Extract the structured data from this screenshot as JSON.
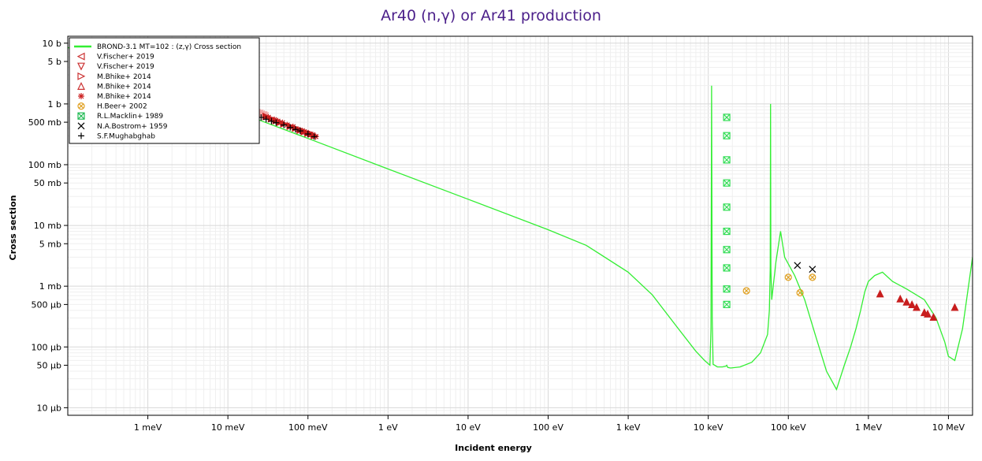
{
  "chart_data": {
    "type": "line",
    "title": "Ar40 (n,γ) or Ar41 production",
    "xlabel": "Incident energy",
    "ylabel": "Cross section",
    "x_scale": "log",
    "y_scale": "log",
    "x_unit": "eV",
    "y_unit": "b",
    "xlim": [
      0.0001,
      20000000
    ],
    "ylim": [
      7.5e-06,
      13
    ],
    "grid": true,
    "legend_position": "top-left",
    "x_ticks": [
      {
        "value": 0.001,
        "label": "1 meV"
      },
      {
        "value": 0.01,
        "label": "10 meV"
      },
      {
        "value": 0.1,
        "label": "100 meV"
      },
      {
        "value": 1,
        "label": "1 eV"
      },
      {
        "value": 10,
        "label": "10 eV"
      },
      {
        "value": 100,
        "label": "100 eV"
      },
      {
        "value": 1000,
        "label": "1 keV"
      },
      {
        "value": 10000,
        "label": "10 keV"
      },
      {
        "value": 100000,
        "label": "100 keV"
      },
      {
        "value": 1000000,
        "label": "1 MeV"
      },
      {
        "value": 10000000,
        "label": "10 MeV"
      }
    ],
    "y_ticks": [
      {
        "value": 10,
        "label": "10 b"
      },
      {
        "value": 5,
        "label": "5 b"
      },
      {
        "value": 1,
        "label": "1 b"
      },
      {
        "value": 0.5,
        "label": "500 mb"
      },
      {
        "value": 0.1,
        "label": "100 mb"
      },
      {
        "value": 0.05,
        "label": "50 mb"
      },
      {
        "value": 0.01,
        "label": "10 mb"
      },
      {
        "value": 0.005,
        "label": "5 mb"
      },
      {
        "value": 0.001,
        "label": "1 mb"
      },
      {
        "value": 0.0005,
        "label": "500 µb"
      },
      {
        "value": 0.0001,
        "label": "100 µb"
      },
      {
        "value": 5e-05,
        "label": "50 µb"
      },
      {
        "value": 1e-05,
        "label": "10 µb"
      }
    ],
    "series": [
      {
        "name": "BROND-3.1 MT=102 : (z,γ) Cross section",
        "kind": "line",
        "color": "#33ee33",
        "x": [
          0.0001,
          0.01,
          0.0253,
          0.1,
          1,
          10,
          100,
          300,
          1000,
          2000,
          4000,
          7000,
          9000,
          10500,
          10800,
          11000,
          11200,
          11500,
          13000,
          15000,
          16500,
          17000,
          17500,
          19000,
          25000,
          35000,
          45000,
          55000,
          58000,
          59500,
          60000,
          60500,
          62000,
          70000,
          80000,
          90000,
          120000,
          160000,
          220000,
          300000,
          400000,
          500000,
          600000,
          700000,
          800000,
          900000,
          1000000,
          1200000,
          1500000,
          2000000,
          3000000,
          5000000,
          7000000,
          9000000,
          10000000,
          12000000,
          15000000,
          20000000
        ],
        "y": [
          8.5,
          0.85,
          0.535,
          0.27,
          0.085,
          0.027,
          0.0085,
          0.0047,
          0.0017,
          0.00072,
          0.00022,
          8.5e-05,
          6e-05,
          5e-05,
          0.0002,
          2.0,
          0.0003,
          5.2e-05,
          4.7e-05,
          4.7e-05,
          4.8e-05,
          5e-05,
          4.6e-05,
          4.5e-05,
          4.7e-05,
          5.6e-05,
          8e-05,
          0.00016,
          0.0004,
          0.002,
          1.0,
          0.002,
          0.0006,
          0.0025,
          0.008,
          0.003,
          0.0015,
          0.0006,
          0.00015,
          4e-05,
          2e-05,
          5e-05,
          0.0001,
          0.0002,
          0.0004,
          0.0008,
          0.0012,
          0.0015,
          0.0017,
          0.0012,
          0.0009,
          0.0006,
          0.0003,
          0.00012,
          7e-05,
          6e-05,
          0.0002,
          0.003
        ]
      },
      {
        "name": "V.Fischer+ 2019",
        "kind": "points",
        "color": "#f2a6a6",
        "x": [
          0.015,
          0.017,
          0.019,
          0.021,
          0.023,
          0.026,
          0.029
        ],
        "y": [
          0.9,
          0.85,
          0.8,
          0.76,
          0.72,
          0.68,
          0.64
        ]
      },
      {
        "name": "V.Fischer+ 2019",
        "kind": "points",
        "color": "#f2a6a6",
        "x": [
          0.016,
          0.018,
          0.02,
          0.022,
          0.025,
          0.028
        ],
        "y": [
          0.88,
          0.82,
          0.78,
          0.74,
          0.7,
          0.66
        ]
      },
      {
        "name": "M.Bhike+ 2014",
        "kind": "points",
        "color": "#c81e1e",
        "x": [
          0.03,
          0.035,
          0.04,
          0.045,
          0.05,
          0.06,
          0.07,
          0.08,
          0.09,
          0.1,
          0.11,
          0.12
        ],
        "y": [
          0.62,
          0.57,
          0.53,
          0.5,
          0.47,
          0.43,
          0.4,
          0.37,
          0.35,
          0.33,
          0.32,
          0.3
        ]
      },
      {
        "name": "M.Bhike+ 2014",
        "kind": "points",
        "color": "#c81e1e",
        "x": [
          0.032,
          0.038,
          0.042,
          0.048,
          0.055,
          0.065,
          0.075,
          0.085,
          0.095,
          0.105,
          0.115,
          0.125
        ],
        "y": [
          0.6,
          0.55,
          0.52,
          0.49,
          0.45,
          0.42,
          0.38,
          0.36,
          0.34,
          0.32,
          0.31,
          0.29
        ]
      },
      {
        "name": "M.Bhike+ 2014",
        "kind": "points",
        "color": "#c81e1e",
        "x": [
          1400000,
          2500000,
          3000000,
          3500000,
          4000000,
          5000000,
          5500000,
          6500000,
          12000000
        ],
        "y": [
          0.00075,
          0.00062,
          0.00055,
          0.0005,
          0.00045,
          0.00037,
          0.00035,
          0.00031,
          0.00045
        ]
      },
      {
        "name": "H.Beer+ 2002",
        "kind": "points",
        "color": "#e0a020",
        "x": [
          30000,
          100000,
          140000,
          200000
        ],
        "y": [
          0.00084,
          0.0014,
          0.00078,
          0.0014
        ]
      },
      {
        "name": "R.L.Macklin+ 1989",
        "kind": "points",
        "color": "#33dd55",
        "x": [
          17000,
          17000,
          17000,
          17000,
          17000,
          17000,
          17000,
          17000,
          17000,
          17000
        ],
        "y": [
          0.6,
          0.3,
          0.12,
          0.05,
          0.02,
          0.008,
          0.004,
          0.002,
          0.0009,
          0.0005
        ]
      },
      {
        "name": "N.A.Bostrom+ 1959",
        "kind": "points",
        "color": "#000000",
        "x": [
          130000,
          200000
        ],
        "y": [
          0.0022,
          0.0019
        ]
      },
      {
        "name": "S.F.Mughabghab",
        "kind": "points",
        "color": "#000000",
        "x": [
          0.026,
          0.03,
          0.035,
          0.04,
          0.05,
          0.06,
          0.07,
          0.08,
          0.1,
          0.12
        ],
        "y": [
          0.6,
          0.56,
          0.52,
          0.49,
          0.45,
          0.41,
          0.38,
          0.36,
          0.32,
          0.29
        ]
      }
    ]
  },
  "legend": [
    {
      "label": "BROND-3.1  MT=102 : (z,γ) Cross section",
      "symbol": "line",
      "color": "#33ee33"
    },
    {
      "label": "V.Fischer+ 2019",
      "symbol": "triangle-left",
      "color": "#cc3333"
    },
    {
      "label": "V.Fischer+ 2019",
      "symbol": "triangle-down",
      "color": "#cc3333"
    },
    {
      "label": "M.Bhike+ 2014",
      "symbol": "triangle-right",
      "color": "#cc3333"
    },
    {
      "label": "M.Bhike+ 2014",
      "symbol": "triangle-up",
      "color": "#cc3333"
    },
    {
      "label": "M.Bhike+ 2014",
      "symbol": "asterisk",
      "color": "#cc2222"
    },
    {
      "label": "H.Beer+ 2002",
      "symbol": "circle-x",
      "color": "#e0a020"
    },
    {
      "label": "R.L.Macklin+ 1989",
      "symbol": "square-x",
      "color": "#22bb55"
    },
    {
      "label": "N.A.Bostrom+ 1959",
      "symbol": "x",
      "color": "#000000"
    },
    {
      "label": "S.F.Mughabghab",
      "symbol": "plus",
      "color": "#000000"
    }
  ]
}
